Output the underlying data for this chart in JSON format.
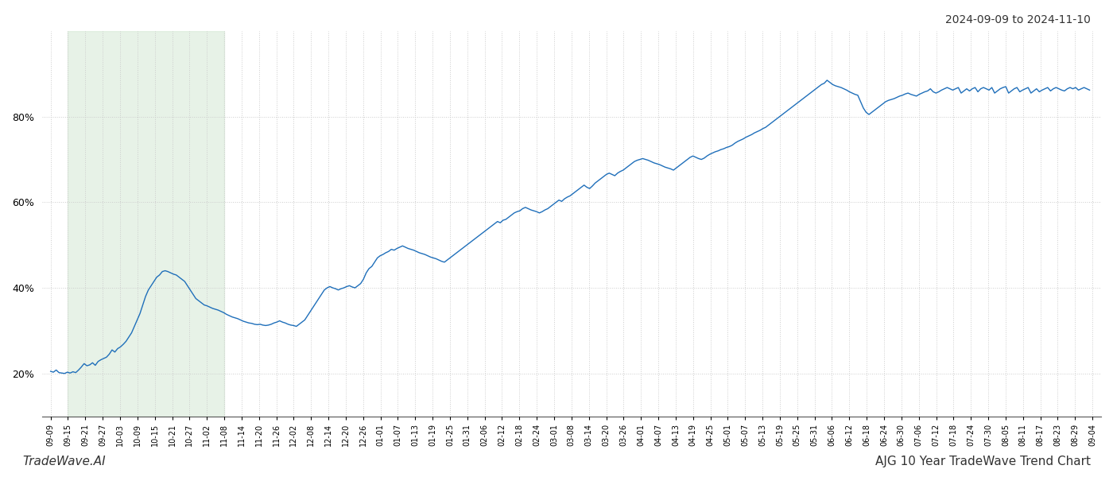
{
  "title_top_right": "2024-09-09 to 2024-11-10",
  "bottom_left_text": "TradeWave.AI",
  "bottom_right_text": "AJG 10 Year TradeWave Trend Chart",
  "line_color": "#1f6fba",
  "line_width": 1.0,
  "shade_color": "#d4e8d4",
  "shade_alpha": 0.55,
  "background_color": "#ffffff",
  "grid_color": "#cccccc",
  "grid_style": ":",
  "ylim": [
    10,
    100
  ],
  "yticks": [
    20,
    40,
    60,
    80
  ],
  "x_labels": [
    "09-09",
    "09-15",
    "09-21",
    "09-27",
    "10-03",
    "10-09",
    "10-15",
    "10-21",
    "10-27",
    "11-02",
    "11-08",
    "11-14",
    "11-20",
    "11-26",
    "12-02",
    "12-08",
    "12-14",
    "12-20",
    "12-26",
    "01-01",
    "01-07",
    "01-13",
    "01-19",
    "01-25",
    "01-31",
    "02-06",
    "02-12",
    "02-18",
    "02-24",
    "03-01",
    "03-08",
    "03-14",
    "03-20",
    "03-26",
    "04-01",
    "04-07",
    "04-13",
    "04-19",
    "04-25",
    "05-01",
    "05-07",
    "05-13",
    "05-19",
    "05-25",
    "05-31",
    "06-06",
    "06-12",
    "06-18",
    "06-24",
    "06-30",
    "07-06",
    "07-12",
    "07-18",
    "07-24",
    "07-30",
    "08-05",
    "08-11",
    "08-17",
    "08-23",
    "08-29",
    "09-04"
  ],
  "shade_start_label": "09-15",
  "shade_end_label": "11-08",
  "y_values": [
    20.5,
    20.3,
    20.8,
    20.2,
    20.1,
    20.0,
    20.3,
    20.1,
    20.4,
    20.2,
    20.8,
    21.5,
    22.3,
    21.8,
    22.0,
    22.5,
    21.9,
    22.8,
    23.2,
    23.5,
    23.8,
    24.5,
    25.5,
    25.0,
    25.8,
    26.2,
    26.8,
    27.5,
    28.5,
    29.5,
    31.0,
    32.5,
    34.0,
    36.0,
    38.0,
    39.5,
    40.5,
    41.5,
    42.5,
    43.0,
    43.8,
    44.0,
    43.8,
    43.5,
    43.2,
    43.0,
    42.5,
    42.0,
    41.5,
    40.5,
    39.5,
    38.5,
    37.5,
    37.0,
    36.5,
    36.0,
    35.8,
    35.5,
    35.2,
    35.0,
    34.8,
    34.5,
    34.2,
    33.8,
    33.5,
    33.2,
    33.0,
    32.8,
    32.5,
    32.2,
    32.0,
    31.8,
    31.7,
    31.5,
    31.4,
    31.5,
    31.3,
    31.2,
    31.3,
    31.5,
    31.8,
    32.0,
    32.3,
    32.0,
    31.8,
    31.5,
    31.3,
    31.2,
    31.0,
    31.5,
    32.0,
    32.5,
    33.5,
    34.5,
    35.5,
    36.5,
    37.5,
    38.5,
    39.5,
    40.0,
    40.3,
    40.0,
    39.8,
    39.5,
    39.8,
    40.0,
    40.3,
    40.5,
    40.2,
    40.0,
    40.5,
    41.0,
    42.0,
    43.5,
    44.5,
    45.0,
    46.0,
    47.0,
    47.5,
    47.8,
    48.2,
    48.5,
    49.0,
    48.8,
    49.2,
    49.5,
    49.8,
    49.5,
    49.2,
    49.0,
    48.8,
    48.5,
    48.2,
    48.0,
    47.8,
    47.5,
    47.2,
    47.0,
    46.8,
    46.5,
    46.2,
    46.0,
    46.5,
    47.0,
    47.5,
    48.0,
    48.5,
    49.0,
    49.5,
    50.0,
    50.5,
    51.0,
    51.5,
    52.0,
    52.5,
    53.0,
    53.5,
    54.0,
    54.5,
    55.0,
    55.5,
    55.2,
    55.8,
    56.0,
    56.5,
    57.0,
    57.5,
    57.8,
    58.0,
    58.5,
    58.8,
    58.5,
    58.2,
    58.0,
    57.8,
    57.5,
    57.8,
    58.2,
    58.5,
    59.0,
    59.5,
    60.0,
    60.5,
    60.2,
    60.8,
    61.2,
    61.5,
    62.0,
    62.5,
    63.0,
    63.5,
    64.0,
    63.5,
    63.2,
    63.8,
    64.5,
    65.0,
    65.5,
    66.0,
    66.5,
    66.8,
    66.5,
    66.2,
    66.8,
    67.2,
    67.5,
    68.0,
    68.5,
    69.0,
    69.5,
    69.8,
    70.0,
    70.2,
    70.0,
    69.8,
    69.5,
    69.2,
    69.0,
    68.8,
    68.5,
    68.2,
    68.0,
    67.8,
    67.5,
    68.0,
    68.5,
    69.0,
    69.5,
    70.0,
    70.5,
    70.8,
    70.5,
    70.2,
    70.0,
    70.3,
    70.8,
    71.2,
    71.5,
    71.8,
    72.0,
    72.3,
    72.5,
    72.8,
    73.0,
    73.3,
    73.8,
    74.2,
    74.5,
    74.8,
    75.2,
    75.5,
    75.8,
    76.2,
    76.5,
    76.8,
    77.2,
    77.5,
    78.0,
    78.5,
    79.0,
    79.5,
    80.0,
    80.5,
    81.0,
    81.5,
    82.0,
    82.5,
    83.0,
    83.5,
    84.0,
    84.5,
    85.0,
    85.5,
    86.0,
    86.5,
    87.0,
    87.5,
    87.8,
    88.5,
    88.0,
    87.5,
    87.2,
    87.0,
    86.8,
    86.5,
    86.2,
    85.8,
    85.5,
    85.2,
    85.0,
    83.5,
    82.0,
    81.0,
    80.5,
    81.0,
    81.5,
    82.0,
    82.5,
    83.0,
    83.5,
    83.8,
    84.0,
    84.2,
    84.5,
    84.8,
    85.0,
    85.3,
    85.5,
    85.2,
    85.0,
    84.8,
    85.2,
    85.5,
    85.8,
    86.0,
    86.5,
    85.8,
    85.5,
    85.8,
    86.2,
    86.5,
    86.8,
    86.5,
    86.2,
    86.5,
    86.8,
    85.5,
    86.0,
    86.5,
    86.0,
    86.5,
    86.8,
    85.8,
    86.5,
    86.8,
    86.5,
    86.2,
    86.8,
    85.5,
    86.0,
    86.5,
    86.8,
    87.0,
    85.5,
    86.0,
    86.5,
    86.8,
    85.8,
    86.2,
    86.5,
    86.8,
    85.5,
    86.0,
    86.5,
    85.8,
    86.2,
    86.5,
    86.8,
    86.0,
    86.5,
    86.8,
    86.5,
    86.2,
    86.0,
    86.5,
    86.8,
    86.5,
    86.8,
    86.2,
    86.5,
    86.8,
    86.5,
    86.2
  ]
}
